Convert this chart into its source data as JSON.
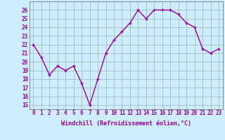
{
  "x": [
    0,
    1,
    2,
    3,
    4,
    5,
    6,
    7,
    8,
    9,
    10,
    11,
    12,
    13,
    14,
    15,
    16,
    17,
    18,
    19,
    20,
    21,
    22,
    23
  ],
  "y": [
    22,
    20.5,
    18.5,
    19.5,
    19,
    19.5,
    17.5,
    15,
    18,
    21,
    22.5,
    23.5,
    24.5,
    26,
    25,
    26,
    26,
    26,
    25.5,
    24.5,
    24,
    21.5,
    21,
    21.5
  ],
  "line_color": "#990099",
  "marker_color": "#990099",
  "bg_color": "#cceeff",
  "grid_color": "#aabbbb",
  "xlabel": "Windchill (Refroidissement éolien,°C)",
  "yticks": [
    15,
    16,
    17,
    18,
    19,
    20,
    21,
    22,
    23,
    24,
    25,
    26
  ],
  "xticks": [
    0,
    1,
    2,
    3,
    4,
    5,
    6,
    7,
    8,
    9,
    10,
    11,
    12,
    13,
    14,
    15,
    16,
    17,
    18,
    19,
    20,
    21,
    22,
    23
  ],
  "ylim": [
    14.5,
    27
  ],
  "xlim": [
    -0.5,
    23.5
  ],
  "xlabel_fontsize": 6,
  "tick_fontsize": 5.5,
  "line_width": 1.0,
  "marker_size": 3
}
